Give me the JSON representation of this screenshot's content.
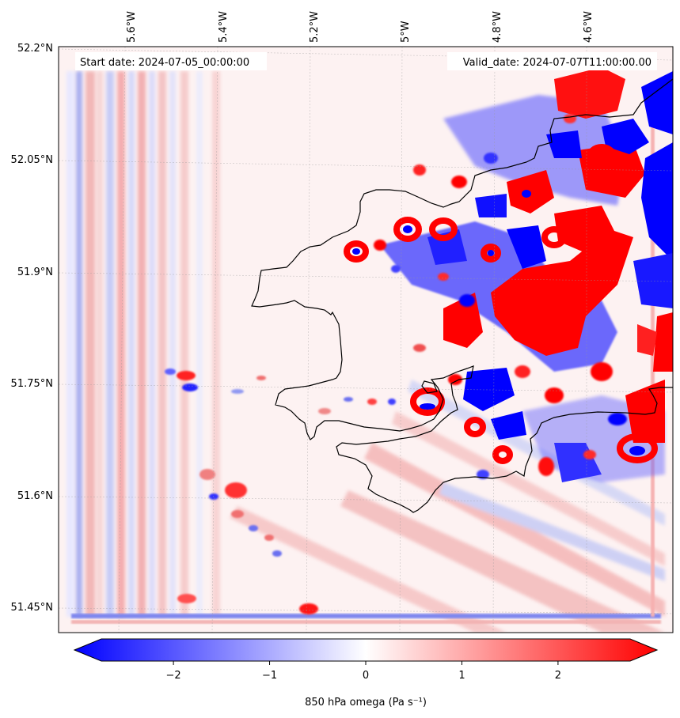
{
  "map": {
    "start_label": "Start date: 2024-07-05_00:00:00",
    "valid_label": "Valid_date: 2024-07-07T11:00:00.00",
    "lon_labels": [
      "5.6°W",
      "5.4°W",
      "5.2°W",
      "5°W",
      "4.8°W",
      "4.6°W"
    ],
    "lat_labels": [
      "52.2°N",
      "52.05°N",
      "51.9°N",
      "51.75°N",
      "51.6°N",
      "51.45°N"
    ],
    "gridlines": true,
    "coastline_color": "#000000"
  },
  "colorbar": {
    "label": "850 hPa omega (Pa s⁻¹)",
    "tick_labels": [
      "−2",
      "−1",
      "0",
      "1",
      "2"
    ],
    "tick_values": [
      -2,
      -1,
      0,
      1,
      2
    ],
    "range": [
      -2.75,
      2.75
    ],
    "extend": "both",
    "colormap": {
      "low": "#0000ff",
      "mid": "#ffffff",
      "high": "#ff0000"
    }
  }
}
